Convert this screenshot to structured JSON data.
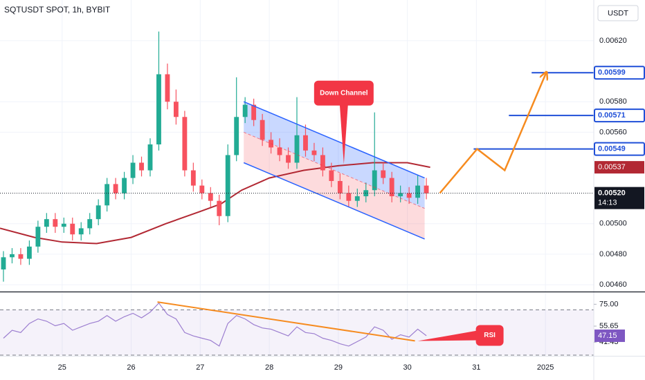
{
  "title": "SQTUSDT SPOT, 1h, BYBIT",
  "chart_data": {
    "type": "candlestick",
    "currency": "USDT",
    "up_color": "#22ab94",
    "down_color": "#f7525f",
    "grid": true,
    "xlim": [
      24.1,
      32.7
    ],
    "xticks": [
      25,
      26,
      27,
      28,
      29,
      30,
      31,
      {
        "value": 32,
        "label": "2025"
      }
    ],
    "ylim": [
      0.004555,
      0.006467
    ],
    "yticks": [
      {
        "value": 0.0062,
        "label": "0.00620"
      },
      {
        "value": 0.0058,
        "label": "0.00580"
      },
      {
        "value": 0.0056,
        "label": "0.00560"
      },
      {
        "value": 0.005,
        "label": "0.00500"
      },
      {
        "value": 0.0048,
        "label": "0.00480"
      },
      {
        "value": 0.0046,
        "label": "0.00460"
      }
    ],
    "x": [
      24.15,
      24.275,
      24.4,
      24.525,
      24.65,
      24.775,
      24.9,
      25.025,
      25.15,
      25.275,
      25.4,
      25.525,
      25.65,
      25.775,
      25.9,
      26.025,
      26.15,
      26.275,
      26.4,
      26.525,
      26.65,
      26.775,
      26.9,
      27.025,
      27.15,
      27.275,
      27.4,
      27.525,
      27.65,
      27.775,
      27.9,
      28.025,
      28.15,
      28.275,
      28.4,
      28.525,
      28.65,
      28.775,
      28.9,
      29.025,
      29.15,
      29.275,
      29.4,
      29.525,
      29.65,
      29.775,
      29.9,
      30.025,
      30.15,
      30.275
    ],
    "open": [
      0.0047,
      0.00478,
      0.0048,
      0.00477,
      0.00485,
      0.00498,
      0.00503,
      0.00498,
      0.005,
      0.00493,
      0.00497,
      0.00503,
      0.00512,
      0.00526,
      0.0052,
      0.0053,
      0.0054,
      0.00535,
      0.00552,
      0.00598,
      0.0058,
      0.0057,
      0.00535,
      0.00525,
      0.0052,
      0.00515,
      0.00505,
      0.00545,
      0.0057,
      0.00578,
      0.00568,
      0.00555,
      0.0055,
      0.00545,
      0.0054,
      0.00558,
      0.00548,
      0.00545,
      0.00535,
      0.00528,
      0.0052,
      0.00515,
      0.00518,
      0.00522,
      0.00535,
      0.0053,
      0.00518,
      0.0052,
      0.00517,
      0.00525
    ],
    "high": [
      0.00482,
      0.00484,
      0.00484,
      0.00489,
      0.00502,
      0.00507,
      0.00507,
      0.00504,
      0.00504,
      0.00501,
      0.00507,
      0.00516,
      0.0053,
      0.0053,
      0.00534,
      0.00545,
      0.00544,
      0.00556,
      0.00626,
      0.00605,
      0.00588,
      0.00574,
      0.0054,
      0.00529,
      0.00524,
      0.00519,
      0.00552,
      0.00596,
      0.00583,
      0.00582,
      0.00572,
      0.0056,
      0.00556,
      0.0055,
      0.00583,
      0.00565,
      0.00553,
      0.0055,
      0.0054,
      0.00533,
      0.00525,
      0.00523,
      0.00527,
      0.00573,
      0.0054,
      0.00534,
      0.00525,
      0.00524,
      0.00532,
      0.0053
    ],
    "low": [
      0.00462,
      0.00474,
      0.00473,
      0.00473,
      0.00481,
      0.00494,
      0.00494,
      0.00494,
      0.00489,
      0.00489,
      0.00493,
      0.00499,
      0.00508,
      0.00516,
      0.00516,
      0.00526,
      0.00531,
      0.00531,
      0.00548,
      0.00575,
      0.00565,
      0.00531,
      0.00521,
      0.00516,
      0.00511,
      0.00499,
      0.00501,
      0.00541,
      0.00566,
      0.00564,
      0.00551,
      0.00546,
      0.00541,
      0.00536,
      0.00536,
      0.00544,
      0.00541,
      0.00531,
      0.00524,
      0.00516,
      0.00511,
      0.00511,
      0.00514,
      0.00518,
      0.00526,
      0.00514,
      0.00514,
      0.00513,
      0.00513,
      0.00516
    ],
    "close": [
      0.00478,
      0.0048,
      0.00477,
      0.00485,
      0.00498,
      0.00503,
      0.00498,
      0.005,
      0.00493,
      0.00497,
      0.00503,
      0.00512,
      0.00526,
      0.0052,
      0.0053,
      0.0054,
      0.00535,
      0.00552,
      0.00598,
      0.0058,
      0.0057,
      0.00535,
      0.00525,
      0.0052,
      0.00515,
      0.00505,
      0.00545,
      0.0057,
      0.00578,
      0.00568,
      0.00555,
      0.0055,
      0.00545,
      0.0054,
      0.00558,
      0.00548,
      0.00545,
      0.00535,
      0.00528,
      0.0052,
      0.00515,
      0.00518,
      0.00522,
      0.00535,
      0.0053,
      0.00518,
      0.0052,
      0.00517,
      0.00525,
      0.0052
    ],
    "last_price": {
      "value": 0.0052,
      "label": "0.00520",
      "countdown": "14:13",
      "color": "#131722"
    },
    "moving_average": {
      "color": "#b22833",
      "label": "0.00537",
      "x": [
        24.1,
        24.6,
        25.0,
        25.5,
        26.0,
        26.5,
        27.0,
        27.3,
        27.6,
        28.0,
        28.5,
        29.0,
        29.5,
        30.0,
        30.33
      ],
      "values": [
        0.00497,
        0.00491,
        0.00488,
        0.00487,
        0.00491,
        0.005,
        0.00508,
        0.00513,
        0.00522,
        0.0053,
        0.00535,
        0.00538,
        0.0054,
        0.0054,
        0.00537
      ]
    },
    "levels": [
      {
        "value": 0.00599,
        "label": "0.00599",
        "x_start": 31.8
      },
      {
        "value": 0.00571,
        "label": "0.00571",
        "x_start": 31.47
      },
      {
        "value": 0.00549,
        "label": "0.00549",
        "x_start": 30.96
      }
    ],
    "level_color": "#1f4fd8",
    "channel": {
      "x": [
        27.63,
        30.25
      ],
      "upper": [
        0.0058,
        0.0053
      ],
      "middle": [
        0.0056,
        0.0051
      ],
      "lower": [
        0.0054,
        0.0049
      ],
      "color": "#2962ff"
    },
    "projection": {
      "color": "#f68b1f",
      "x": [
        30.47,
        31.01,
        31.41,
        32.01
      ],
      "values": [
        0.0052,
        0.00549,
        0.00535,
        0.00599
      ]
    },
    "annotations": [
      {
        "text": "Down Channel",
        "x": 29.08,
        "y": 0.00539,
        "color": "#f23645"
      }
    ],
    "rsi": {
      "color": "#7e57c2",
      "ylim": [
        30,
        85
      ],
      "yticks": [
        {
          "value": 75,
          "label": "75.00"
        },
        55.65,
        41.43
      ],
      "bands": [
        70,
        30
      ],
      "current": {
        "value": 47.15,
        "label": "47.15"
      },
      "values": [
        45,
        52,
        50,
        58,
        62,
        60,
        56,
        58,
        52,
        55,
        58,
        60,
        65,
        60,
        64,
        67,
        63,
        68,
        76,
        66,
        62,
        50,
        47,
        45,
        43,
        38,
        58,
        65,
        62,
        57,
        54,
        53,
        50,
        47,
        55,
        50,
        49,
        45,
        43,
        40,
        38,
        42,
        46,
        55,
        52,
        44,
        48,
        46,
        53,
        47.15
      ],
      "trendline": {
        "x": [
          26.38,
          30.11
        ],
        "values": [
          77,
          42.6
        ],
        "color": "#f68b1f"
      },
      "annotation": {
        "text": "RSI",
        "x": 30.15,
        "y": 42.5,
        "color": "#f23645"
      }
    }
  }
}
